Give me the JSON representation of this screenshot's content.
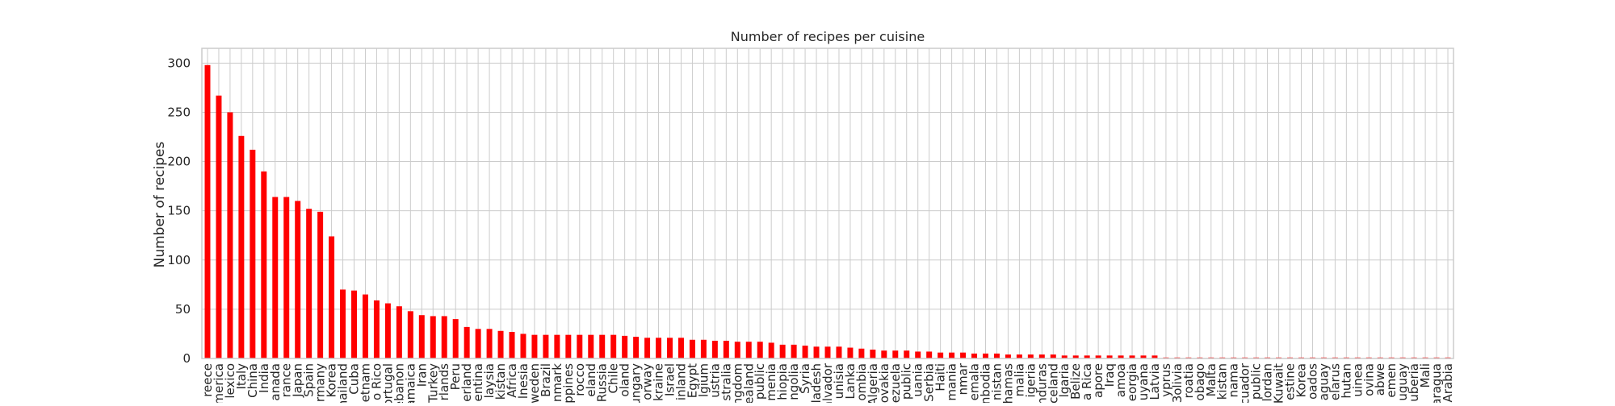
{
  "chart_data": {
    "type": "bar",
    "title": "Number of recipes per cuisine",
    "xlabel": "",
    "ylabel": "Number of recipes",
    "ylim": [
      0,
      315
    ],
    "yticks": [
      0,
      50,
      100,
      150,
      200,
      250,
      300
    ],
    "grid": true,
    "legend": "none",
    "colors": {
      "bar": "#ff0000",
      "grid": "#cccccc",
      "background": "#ffffff",
      "text": "#262626"
    },
    "categories": [
      "reece",
      "merica",
      "lexico",
      "Italy",
      "China",
      "India",
      "anada",
      "rance",
      "Japan",
      "Spain",
      "rmany",
      "Korea",
      "hailand",
      "Cuba",
      "etnam",
      "o Rico",
      "ortugal",
      "ebanon",
      "amaica",
      "Iran",
      "Turkey",
      "rlands",
      "Peru",
      "erland",
      "entina",
      "laysia",
      "kistan",
      "Africa",
      "lnesia",
      "weden",
      "Brazil",
      "nmark",
      "ppines",
      "rocco",
      "eland",
      "Russia",
      "Chile",
      "oland",
      "ungary",
      "orway",
      "kraine",
      "Israel",
      "inland",
      "Egypt",
      "lgium",
      "ustria",
      "stralia",
      "ingdom",
      "ealand",
      "public",
      "menia",
      "hiopia",
      "ngolia",
      "Syria",
      "gladesh",
      "alvador",
      "unisia",
      "Lanka",
      "ombia",
      "Algeria",
      "ovakia",
      "ezuela",
      "public",
      "uania",
      "Serbia",
      "Haiti",
      "mania",
      "nmar",
      "emala",
      "nbodia",
      "nistan",
      "hamas",
      "malia",
      "igeria",
      "nduras",
      "celand",
      "lgaria",
      "Belize",
      "a Rica",
      "apore",
      "Iraq",
      "amoa",
      "eorgia",
      "uyana",
      "Latvia",
      "yprus",
      "3olivia",
      "roatia",
      "obago",
      "Malta",
      "kistan",
      "nama",
      "cuador",
      "public",
      "lordan",
      "Kuwait",
      "estine",
      "Korea",
      "oados",
      "aguay",
      "elarus",
      "hutan",
      "uinea",
      "ovina",
      "abwe",
      "emen",
      "uguay",
      "uberia",
      "Mali",
      "aragua",
      "Arabia"
    ],
    "values": [
      298,
      267,
      250,
      226,
      212,
      190,
      164,
      164,
      160,
      152,
      149,
      124,
      70,
      69,
      65,
      59,
      56,
      53,
      48,
      44,
      43,
      43,
      40,
      32,
      30,
      30,
      28,
      27,
      25,
      24,
      24,
      24,
      24,
      24,
      24,
      24,
      24,
      23,
      22,
      21,
      21,
      21,
      21,
      19,
      19,
      18,
      18,
      17,
      17,
      17,
      16,
      14,
      14,
      13,
      12,
      12,
      12,
      11,
      10,
      9,
      8,
      8,
      8,
      7,
      7,
      6,
      6,
      6,
      5,
      5,
      5,
      4,
      4,
      4,
      4,
      4,
      3,
      3,
      3,
      3,
      3,
      3,
      3,
      3,
      3,
      1,
      1,
      1,
      1,
      1,
      1,
      1,
      1,
      1,
      1,
      1,
      1,
      1,
      1,
      1,
      1,
      1,
      1,
      1,
      1,
      1,
      1,
      1,
      1,
      1,
      1
    ]
  }
}
